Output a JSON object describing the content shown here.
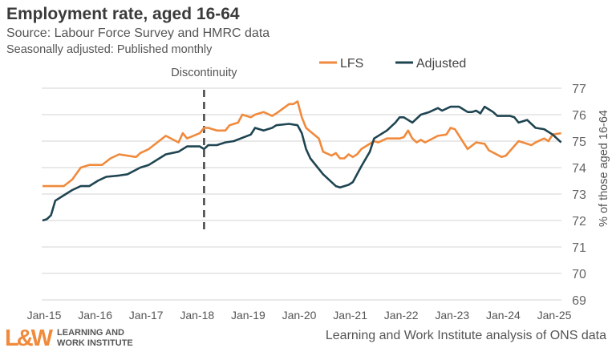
{
  "header": {
    "title": "Employment rate, aged 16-64",
    "subtitle": "Source: Labour Force Survey and HMRC data",
    "note": "Seasonally adjusted: Published monthly"
  },
  "footer": {
    "logo_mark": "L&W",
    "logo_line1": "LEARNING AND",
    "logo_line2": "WORK INSTITUTE",
    "source": "Learning and Work Institute analysis of ONS data"
  },
  "chart_data": {
    "type": "line",
    "title": "Employment rate, aged 16-64",
    "ylabel": "% of those aged 16-64",
    "xlabel": "",
    "ylim": [
      69,
      77
    ],
    "xlim": [
      "2015-01",
      "2025-03"
    ],
    "yticks": [
      "69",
      "70",
      "71",
      "72",
      "73",
      "74",
      "75",
      "76",
      "77"
    ],
    "xticks": [
      "Jan-15",
      "Jan-16",
      "Jan-17",
      "Jan-18",
      "Jan-19",
      "Jan-20",
      "Jan-21",
      "Jan-22",
      "Jan-23",
      "Jan-24",
      "Jan-25"
    ],
    "grid": true,
    "y_axis_side": "right",
    "legend_placement": "top-right",
    "annotation": {
      "label": "Discontinuity",
      "x": "2018-03"
    },
    "series": [
      {
        "name": "LFS",
        "color": "#f08a3c",
        "points": [
          [
            "2015-01",
            73.3
          ],
          [
            "2015-06",
            73.3
          ],
          [
            "2015-08",
            73.55
          ],
          [
            "2015-10",
            74.0
          ],
          [
            "2015-12",
            74.1
          ],
          [
            "2016-03",
            74.1
          ],
          [
            "2016-05",
            74.35
          ],
          [
            "2016-07",
            74.5
          ],
          [
            "2016-11",
            74.4
          ],
          [
            "2016-12",
            74.55
          ],
          [
            "2017-02",
            74.7
          ],
          [
            "2017-06",
            75.2
          ],
          [
            "2017-09",
            74.95
          ],
          [
            "2017-10",
            75.3
          ],
          [
            "2017-11",
            75.1
          ],
          [
            "2018-02",
            75.3
          ],
          [
            "2018-03",
            75.5
          ],
          [
            "2018-04",
            75.5
          ],
          [
            "2018-06",
            75.4
          ],
          [
            "2018-08",
            75.4
          ],
          [
            "2018-09",
            75.6
          ],
          [
            "2018-11",
            75.7
          ],
          [
            "2018-12",
            76.0
          ],
          [
            "2019-02",
            75.9
          ],
          [
            "2019-03",
            76.0
          ],
          [
            "2019-05",
            76.1
          ],
          [
            "2019-07",
            75.95
          ],
          [
            "2019-08",
            76.05
          ],
          [
            "2019-11",
            76.4
          ],
          [
            "2019-12",
            76.4
          ],
          [
            "2020-01",
            76.5
          ],
          [
            "2020-02",
            75.9
          ],
          [
            "2020-03",
            75.5
          ],
          [
            "2020-06",
            75.1
          ],
          [
            "2020-07",
            74.6
          ],
          [
            "2020-09",
            74.45
          ],
          [
            "2020-10",
            74.55
          ],
          [
            "2020-11",
            74.35
          ],
          [
            "2020-12",
            74.35
          ],
          [
            "2021-01",
            74.5
          ],
          [
            "2021-02",
            74.4
          ],
          [
            "2021-03",
            74.5
          ],
          [
            "2021-04",
            74.7
          ],
          [
            "2021-07",
            75.0
          ],
          [
            "2021-08",
            74.95
          ],
          [
            "2021-10",
            75.1
          ],
          [
            "2022-01",
            75.1
          ],
          [
            "2022-02",
            75.15
          ],
          [
            "2022-03",
            75.4
          ],
          [
            "2022-04",
            75.1
          ],
          [
            "2022-05",
            74.95
          ],
          [
            "2022-06",
            75.05
          ],
          [
            "2022-07",
            74.95
          ],
          [
            "2022-10",
            75.2
          ],
          [
            "2022-12",
            75.25
          ],
          [
            "2023-01",
            75.5
          ],
          [
            "2023-02",
            75.45
          ],
          [
            "2023-05",
            74.7
          ],
          [
            "2023-07",
            74.95
          ],
          [
            "2023-09",
            74.9
          ],
          [
            "2023-10",
            74.65
          ],
          [
            "2024-01",
            74.4
          ],
          [
            "2024-02",
            74.45
          ],
          [
            "2024-05",
            75.0
          ],
          [
            "2024-08",
            74.85
          ],
          [
            "2024-09",
            74.95
          ],
          [
            "2024-11",
            75.1
          ],
          [
            "2024-12",
            75.0
          ],
          [
            "2025-01",
            75.25
          ],
          [
            "2025-03",
            75.3
          ]
        ]
      },
      {
        "name": "Adjusted",
        "color": "#1f4552",
        "points": [
          [
            "2015-01",
            72.0
          ],
          [
            "2015-02",
            72.05
          ],
          [
            "2015-03",
            72.2
          ],
          [
            "2015-04",
            72.75
          ],
          [
            "2015-06",
            72.95
          ],
          [
            "2015-08",
            73.15
          ],
          [
            "2015-10",
            73.3
          ],
          [
            "2015-12",
            73.3
          ],
          [
            "2016-02",
            73.5
          ],
          [
            "2016-04",
            73.65
          ],
          [
            "2016-07",
            73.7
          ],
          [
            "2016-09",
            73.75
          ],
          [
            "2016-12",
            74.0
          ],
          [
            "2017-02",
            74.1
          ],
          [
            "2017-06",
            74.5
          ],
          [
            "2017-09",
            74.6
          ],
          [
            "2017-11",
            74.8
          ],
          [
            "2018-02",
            74.8
          ],
          [
            "2018-03",
            74.7
          ],
          [
            "2018-04",
            74.85
          ],
          [
            "2018-06",
            74.85
          ],
          [
            "2018-08",
            74.95
          ],
          [
            "2018-10",
            75.0
          ],
          [
            "2019-02",
            75.25
          ],
          [
            "2019-03",
            75.5
          ],
          [
            "2019-05",
            75.4
          ],
          [
            "2019-07",
            75.5
          ],
          [
            "2019-08",
            75.6
          ],
          [
            "2019-11",
            75.65
          ],
          [
            "2020-01",
            75.6
          ],
          [
            "2020-02",
            75.3
          ],
          [
            "2020-03",
            74.7
          ],
          [
            "2020-04",
            74.35
          ],
          [
            "2020-07",
            73.75
          ],
          [
            "2020-10",
            73.3
          ],
          [
            "2020-11",
            73.25
          ],
          [
            "2021-01",
            73.35
          ],
          [
            "2021-02",
            73.45
          ],
          [
            "2021-04",
            74.05
          ],
          [
            "2021-06",
            74.6
          ],
          [
            "2021-07",
            75.1
          ],
          [
            "2021-10",
            75.4
          ],
          [
            "2021-12",
            75.7
          ],
          [
            "2022-01",
            75.9
          ],
          [
            "2022-02",
            75.9
          ],
          [
            "2022-04",
            75.7
          ],
          [
            "2022-06",
            76.0
          ],
          [
            "2022-08",
            76.1
          ],
          [
            "2022-10",
            76.25
          ],
          [
            "2022-11",
            76.15
          ],
          [
            "2023-01",
            76.3
          ],
          [
            "2023-03",
            76.3
          ],
          [
            "2023-05",
            76.1
          ],
          [
            "2023-06",
            76.1
          ],
          [
            "2023-07",
            76.15
          ],
          [
            "2023-08",
            76.05
          ],
          [
            "2023-09",
            76.3
          ],
          [
            "2023-11",
            76.1
          ],
          [
            "2023-12",
            75.95
          ],
          [
            "2024-03",
            75.95
          ],
          [
            "2024-04",
            75.9
          ],
          [
            "2024-05",
            75.7
          ],
          [
            "2024-07",
            75.8
          ],
          [
            "2024-09",
            75.5
          ],
          [
            "2024-11",
            75.45
          ],
          [
            "2025-01",
            75.25
          ],
          [
            "2025-03",
            74.95
          ]
        ]
      }
    ]
  }
}
